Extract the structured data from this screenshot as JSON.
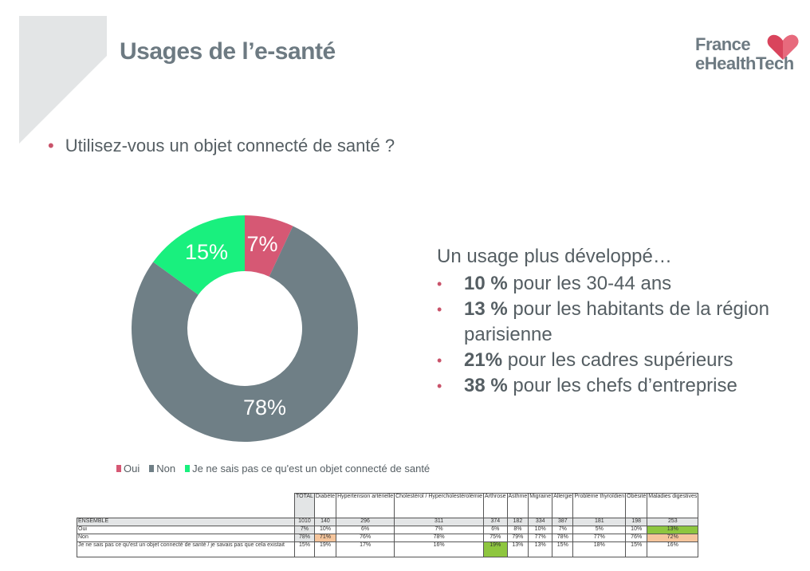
{
  "title": "Usages de l’e-santé",
  "logo": {
    "line1": "France",
    "line2": "eHealthTech"
  },
  "question": "Utilisez-vous un objet connecté de santé ?",
  "panel": {
    "intro": "Un usage plus développé…",
    "items": [
      {
        "bold": "10 %",
        "rest": " pour les 30-44 ans"
      },
      {
        "bold": "13 %",
        "rest": " pour les habitants de la région parisienne"
      },
      {
        "bold": "21%",
        "rest": " pour les cadres supérieurs"
      },
      {
        "bold": "38 %",
        "rest": " pour les chefs d’entreprise"
      }
    ]
  },
  "chart_data": {
    "type": "pie",
    "donut": true,
    "categories": [
      "Oui",
      "Non",
      "Je ne sais pas ce qu'est un objet connecté de santé"
    ],
    "values": [
      7,
      78,
      15
    ],
    "labels": [
      "7%",
      "78%",
      "15%"
    ],
    "colors": [
      "#d65874",
      "#6f7f86",
      "#19f07e"
    ],
    "legend_position": "bottom-left"
  },
  "table": {
    "columns": [
      "TOTAL",
      "Diabète",
      "Hypertension artérielle",
      "Cholestérol / Hypercholestérolémie",
      "Arthrose",
      "Asthme",
      "Migraine",
      "Allergie",
      "Problème thyroïdien",
      "Obésité",
      "Maladies digestives"
    ],
    "rows": [
      {
        "label": "ENSEMBLE",
        "values": [
          "1010",
          "140",
          "296",
          "311",
          "374",
          "182",
          "334",
          "387",
          "181",
          "198",
          "253"
        ]
      },
      {
        "label": "Oui",
        "values": [
          "7%",
          "10%",
          "6%",
          "7%",
          "6%",
          "8%",
          "10%",
          "7%",
          "5%",
          "10%",
          "13%"
        ]
      },
      {
        "label": "Non",
        "values": [
          "78%",
          "71%",
          "76%",
          "78%",
          "75%",
          "79%",
          "77%",
          "78%",
          "77%",
          "76%",
          "72%"
        ]
      },
      {
        "label": "Je ne sais pas ce qu'est un objet connecté de santé / je savais pas que cela existait",
        "values": [
          "15%",
          "19%",
          "17%",
          "16%",
          "19%",
          "13%",
          "13%",
          "15%",
          "18%",
          "15%",
          "16%"
        ]
      }
    ],
    "highlights": {
      "green": [
        "Oui:Maladies digestives",
        "Je ne sais pas:Arthrose"
      ],
      "orange": [
        "Non:Diabète",
        "Non:Maladies digestives"
      ]
    }
  }
}
